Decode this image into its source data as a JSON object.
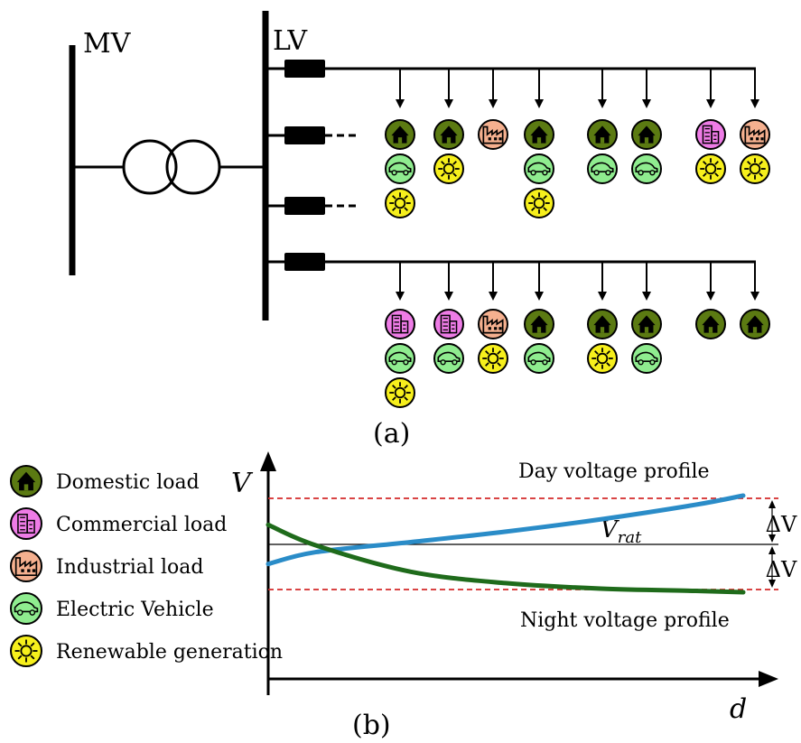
{
  "panel_a": {
    "caption": "(a)",
    "mv_label": "MV",
    "lv_label": "LV",
    "feeder1_stacks": [
      [
        "domestic",
        "ev",
        "renewable"
      ],
      [
        "domestic",
        "renewable"
      ],
      [
        "industrial"
      ],
      [
        "domestic",
        "ev",
        "renewable"
      ],
      [
        "domestic",
        "ev"
      ],
      [
        "domestic",
        "ev"
      ],
      [
        "commercial",
        "renewable"
      ],
      [
        "industrial",
        "renewable"
      ]
    ],
    "feeder4_stacks": [
      [
        "commercial",
        "ev",
        "renewable"
      ],
      [
        "commercial",
        "ev"
      ],
      [
        "industrial",
        "renewable"
      ],
      [
        "domestic",
        "ev"
      ],
      [
        "domestic",
        "renewable"
      ],
      [
        "domestic",
        "ev"
      ],
      [
        "domestic"
      ],
      [
        "domestic"
      ]
    ]
  },
  "legend": [
    {
      "key": "domestic",
      "label": "Domestic load",
      "icon": "house-icon",
      "color": "#5b7a12"
    },
    {
      "key": "commercial",
      "label": "Commercial load",
      "icon": "office-building-icon",
      "color": "#ee7ce6"
    },
    {
      "key": "industrial",
      "label": "Industrial load",
      "icon": "factory-icon",
      "color": "#f5b08f"
    },
    {
      "key": "ev",
      "label": "Electric Vehicle",
      "icon": "car-icon",
      "color": "#8fec8f"
    },
    {
      "key": "renewable",
      "label": "Renewable generation",
      "icon": "sun-icon",
      "color": "#f6ef1c"
    }
  ],
  "panel_b": {
    "caption": "(b)",
    "y_axis_label": "V",
    "x_axis_label": "d",
    "rated_label": "V",
    "rated_sub": "rat",
    "delta_upper": "ΔV",
    "delta_lower": "ΔV",
    "day_label": "Day voltage profile",
    "night_label": "Night voltage profile",
    "colors": {
      "day": "#2a8cc8",
      "night": "#1f6b1b",
      "limit": "#d42a2a",
      "rated": "#000000"
    }
  },
  "chart_data": {
    "type": "line",
    "series": [
      {
        "name": "Day voltage profile",
        "x": [
          0,
          0.1,
          0.3,
          0.5,
          0.7,
          0.9,
          1.0
        ],
        "y": [
          -0.43,
          -0.17,
          0.05,
          0.28,
          0.55,
          0.87,
          1.07
        ]
      },
      {
        "name": "Night voltage profile",
        "x": [
          0,
          0.1,
          0.3,
          0.5,
          0.7,
          0.9,
          1.0
        ],
        "y": [
          0.43,
          -0.02,
          -0.6,
          -0.85,
          -0.97,
          -1.02,
          -1.05
        ]
      }
    ],
    "reference_lines": [
      {
        "name": "V_rat",
        "y": 0
      },
      {
        "name": "upper limit",
        "y": 1
      },
      {
        "name": "lower limit",
        "y": -1
      }
    ],
    "xlabel": "d",
    "ylabel": "V"
  }
}
